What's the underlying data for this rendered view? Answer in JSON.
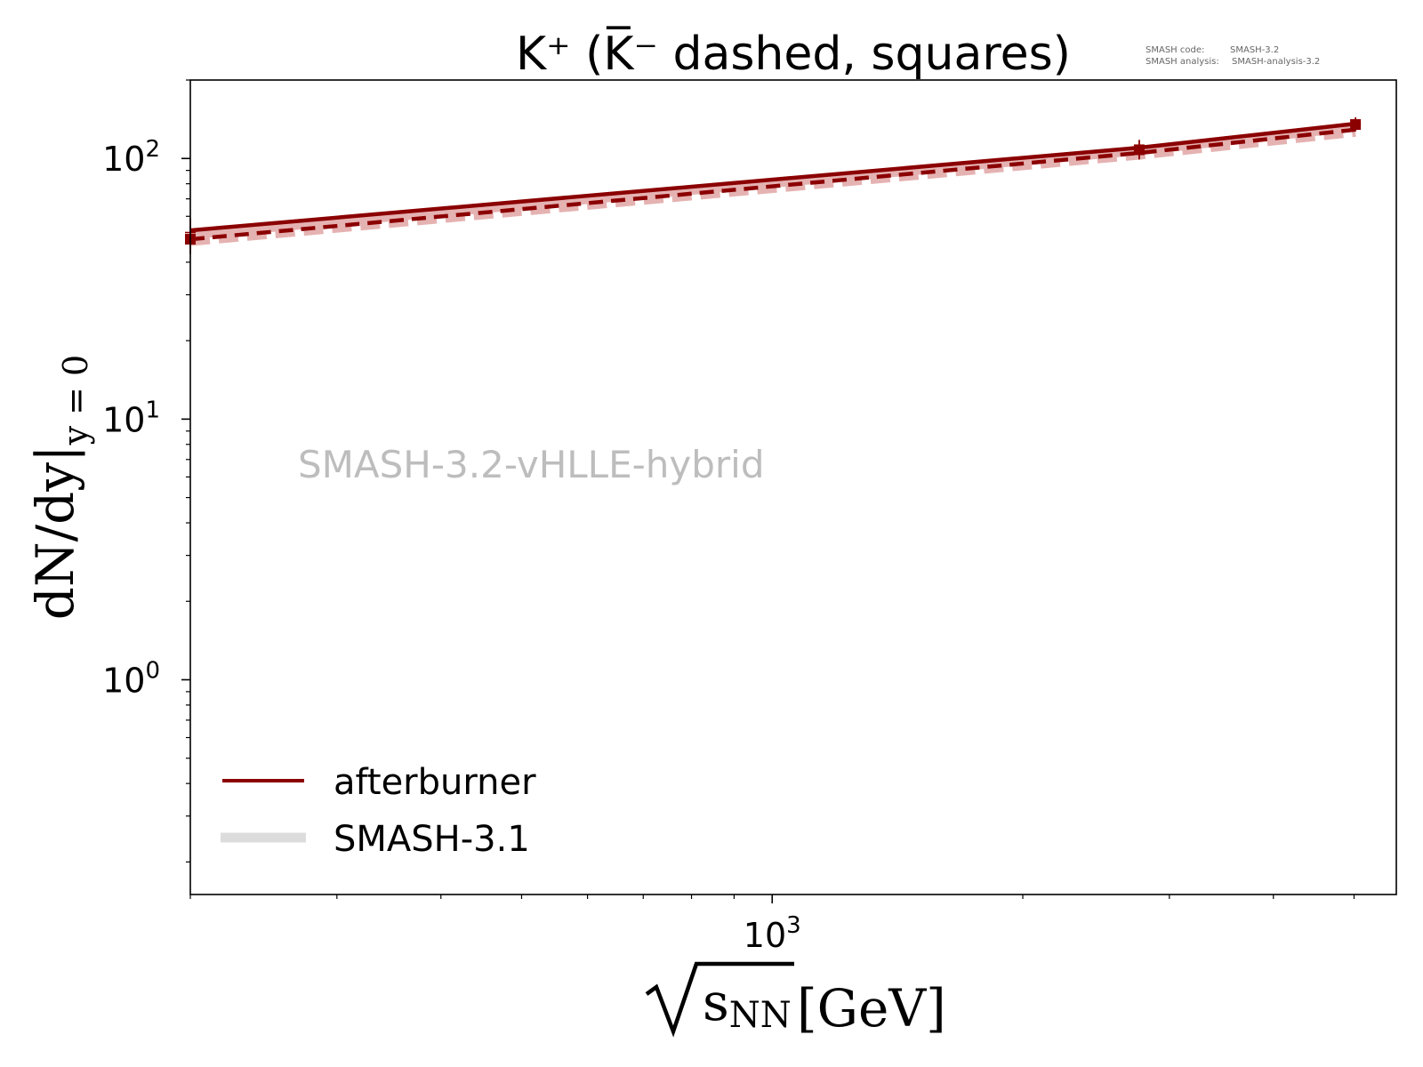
{
  "chart_data": {
    "type": "line",
    "title": "K⁺ (K̅⁻ dashed, squares)",
    "xlabel": {
      "symbol": "s",
      "subscript": "NN",
      "unit": "[GeV]"
    },
    "ylabel": {
      "main": "dN/dy|",
      "subscript": "y = 0"
    },
    "x_scale": "log",
    "y_scale": "log",
    "xlim": [
      200.0,
      5620.0
    ],
    "ylim": [
      0.15,
      200.0
    ],
    "x_tick_labels": [
      {
        "value": 1000,
        "base": "10",
        "exp": "3"
      }
    ],
    "y_tick_labels": [
      {
        "value": 1,
        "base": "10",
        "exp": "0"
      },
      {
        "value": 10,
        "base": "10",
        "exp": "1"
      },
      {
        "value": 100,
        "base": "10",
        "exp": "2"
      }
    ],
    "watermark": "SMASH-3.2-vHLLE-hybrid",
    "version_info": {
      "code_label": "SMASH code:",
      "code_value": "SMASH-3.2",
      "analysis_label": "SMASH analysis:",
      "analysis_value": "SMASH-analysis-3.2"
    },
    "legend": {
      "position": "lower-left",
      "entries": [
        {
          "label": "afterburner",
          "color": "#8b0000"
        },
        {
          "label": "SMASH-3.1",
          "color": "#dcdcdc"
        }
      ]
    },
    "x": [
      200.0,
      2760.0,
      5020.0
    ],
    "series": [
      {
        "particle": "K+",
        "kind": "afterburner",
        "line_style": "solid",
        "color": "#8b0000",
        "values": [
          53.0,
          110.0,
          136.0
        ]
      },
      {
        "particle": "K-",
        "kind": "afterburner",
        "line_style": "dashed",
        "color": "#8b0000",
        "values": [
          49.0,
          105.0,
          129.0
        ]
      },
      {
        "particle": "K+",
        "kind": "SMASH-3.1",
        "line_style": "solid",
        "color": "#e5b2b2",
        "values": [
          51.0,
          107.0,
          132.0
        ]
      },
      {
        "particle": "K-",
        "kind": "SMASH-3.1",
        "line_style": "dashed",
        "color": "#e5b2b2",
        "values": [
          48.0,
          103.0,
          126.0
        ]
      }
    ],
    "experimental_data": {
      "color": "#8b0000",
      "K+": {
        "x": [
          200.0,
          2760.0,
          5020.0
        ],
        "values": [
          52.0,
          109.0,
          136.0
        ],
        "errors": [
          7.0,
          9.0,
          8.0
        ],
        "marker": "plus"
      },
      "K-": {
        "x": [
          200.0,
          2760.0,
          5020.0
        ],
        "values": [
          49.0,
          108.0,
          135.0
        ],
        "errors": [
          6.0,
          9.0,
          8.0
        ],
        "marker": "square"
      }
    }
  }
}
